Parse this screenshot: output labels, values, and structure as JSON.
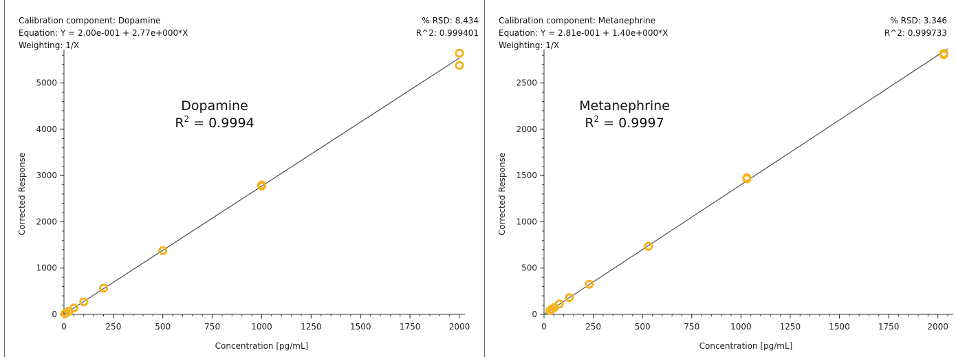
{
  "chart_data": [
    {
      "type": "scatter",
      "component_label": "Calibration component: Dopamine",
      "equation_label": "Equation: Y = 2.00e-001 + 2.77e+000*X",
      "weighting_label": "Weighting: 1/X",
      "rsd_label": "% RSD: 8.434",
      "r2_label": "R^2: 0.999401",
      "annotation_name": "Dopamine",
      "annotation_r2_prefix": "R",
      "annotation_r2_sup": "2",
      "annotation_r2_value": " = 0.9994",
      "xlabel": "Concentration [pg/mL]",
      "ylabel": "Corrected Response",
      "xlim": [
        0,
        2000
      ],
      "ylim": [
        0,
        5500
      ],
      "xticks": [
        0,
        250,
        500,
        750,
        1000,
        1250,
        1500,
        1750,
        2000
      ],
      "yticks": [
        0,
        1000,
        2000,
        3000,
        4000,
        5000
      ],
      "fit": {
        "intercept": 0.2,
        "slope": 2.77
      },
      "points": [
        {
          "x": 5,
          "y": 14
        },
        {
          "x": 10,
          "y": 28
        },
        {
          "x": 25,
          "y": 69
        },
        {
          "x": 50,
          "y": 138
        },
        {
          "x": 100,
          "y": 270
        },
        {
          "x": 200,
          "y": 565
        },
        {
          "x": 500,
          "y": 1375
        },
        {
          "x": 1000,
          "y": 2775
        },
        {
          "x": 1000,
          "y": 2795
        },
        {
          "x": 2000,
          "y": 5380
        },
        {
          "x": 2000,
          "y": 5645
        }
      ],
      "marker_color": "#f5b21a",
      "line_color": "#4a4a4a"
    },
    {
      "type": "scatter",
      "component_label": "Calibration component: Metanephrine",
      "equation_label": "Equation: Y = 2.81e-001 + 1.40e+000*X",
      "weighting_label": "Weighting: 1/X",
      "rsd_label": "% RSD: 3.346",
      "r2_label": "R^2: 0.999733",
      "annotation_name": "Metanephrine",
      "annotation_r2_prefix": "R",
      "annotation_r2_sup": "2",
      "annotation_r2_value": " = 0.9997",
      "xlabel": "Concentration [pg/mL]",
      "ylabel": "Corrected Response",
      "xlim": [
        0,
        2050
      ],
      "ylim": [
        0,
        2750
      ],
      "xticks": [
        0,
        250,
        500,
        750,
        1000,
        1250,
        1500,
        1750,
        2000
      ],
      "yticks": [
        0,
        500,
        1000,
        1500,
        2000,
        2500
      ],
      "fit": {
        "intercept": 0.281,
        "slope": 1.4
      },
      "points": [
        {
          "x": 30,
          "y": 42
        },
        {
          "x": 40,
          "y": 56
        },
        {
          "x": 52,
          "y": 74
        },
        {
          "x": 78,
          "y": 112
        },
        {
          "x": 128,
          "y": 180
        },
        {
          "x": 230,
          "y": 325
        },
        {
          "x": 530,
          "y": 735
        },
        {
          "x": 1030,
          "y": 1465
        },
        {
          "x": 1030,
          "y": 1475
        },
        {
          "x": 2030,
          "y": 2805
        },
        {
          "x": 2030,
          "y": 2820
        }
      ],
      "marker_color": "#f5b21a",
      "line_color": "#4a4a4a"
    }
  ]
}
